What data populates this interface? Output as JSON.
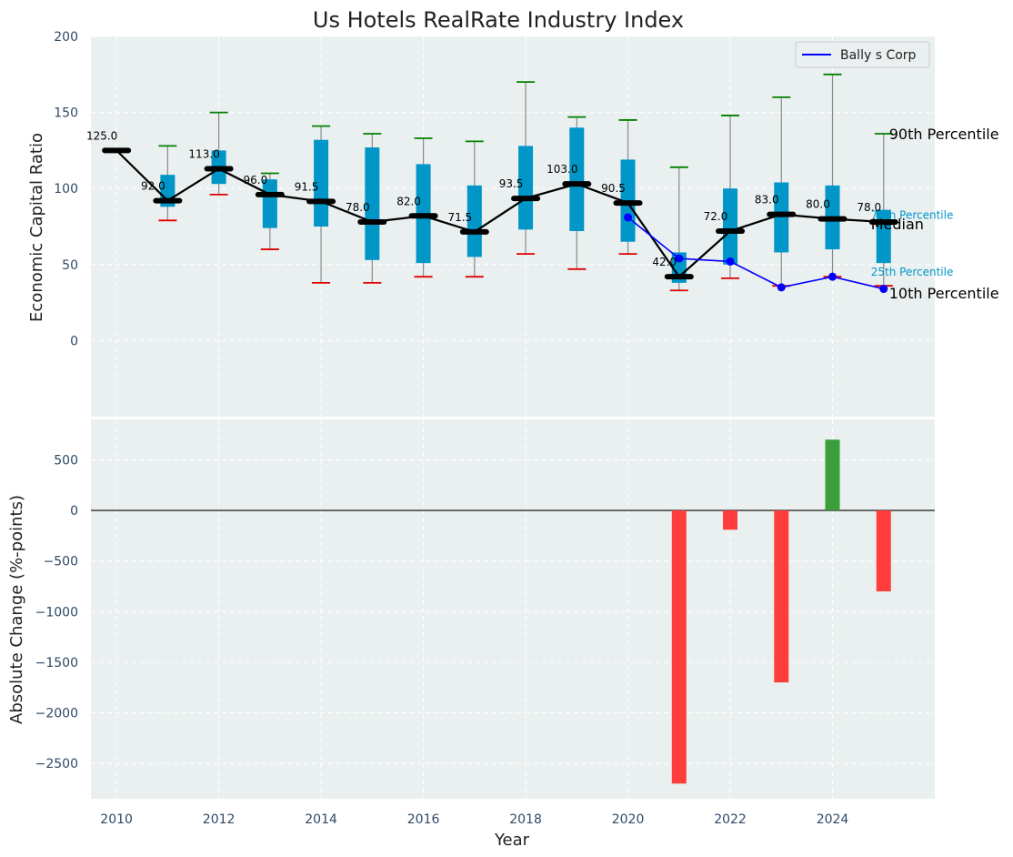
{
  "chart_data": [
    {
      "type": "box",
      "title": "Us Hotels RealRate Industry Index",
      "ylabel": "Economic Capital Ratio",
      "ylim": [
        -50,
        200
      ],
      "yticks": [
        0,
        50,
        100,
        150,
        200
      ],
      "grid": true,
      "legend": {
        "position": "top-right",
        "entries": [
          "Bally s Corp"
        ]
      },
      "colors": {
        "box": "#0096C7",
        "whisker_line": "#8A8A8A",
        "cap_high": "#008000",
        "cap_low": "#E00000",
        "median": "#000000",
        "company": "#0000FF",
        "background": "#EAEFF0"
      },
      "x": [
        2010,
        2011,
        2012,
        2013,
        2014,
        2015,
        2016,
        2017,
        2018,
        2019,
        2020,
        2021,
        2022,
        2023,
        2024,
        2025
      ],
      "p10": [
        125,
        79,
        96,
        60,
        38,
        38,
        42,
        42,
        57,
        47,
        57,
        33,
        41,
        36,
        42,
        36
      ],
      "p25": [
        125,
        88,
        103,
        74,
        75,
        53,
        51,
        55,
        73,
        72,
        65,
        38,
        50,
        58,
        60,
        51
      ],
      "median": [
        125,
        92,
        113,
        96,
        91.5,
        78,
        82,
        71.5,
        93.5,
        103,
        90.5,
        42,
        72,
        83,
        80,
        78
      ],
      "p75": [
        125,
        109,
        125,
        106,
        132,
        127,
        116,
        102,
        128,
        140,
        119,
        58,
        100,
        104,
        102,
        86
      ],
      "p90": [
        125,
        128,
        150,
        110,
        141,
        136,
        133,
        131,
        170,
        147,
        145,
        114,
        148,
        160,
        175,
        136
      ],
      "median_labels": [
        "125.0",
        "92.0",
        "113.0",
        "96.0",
        "91.5",
        "78.0",
        "82.0",
        "71.5",
        "93.5",
        "103.0",
        "90.5",
        "42.0",
        "72.0",
        "83.0",
        "80.0",
        "78.0"
      ],
      "series": [
        {
          "name": "Bally s Corp",
          "x": [
            2020,
            2021,
            2022,
            2023,
            2024,
            2025
          ],
          "values": [
            81,
            54,
            52,
            35,
            42,
            34
          ]
        }
      ],
      "annotations": {
        "p90": "90th Percentile",
        "median": "Median",
        "p10": "10th Percentile",
        "p75": "75th Percentile",
        "p25": "25th Percentile"
      }
    },
    {
      "type": "bar",
      "xlabel": "Year",
      "ylabel": "Absolute Change (%-points)",
      "ylim": [
        -2850,
        900
      ],
      "yticks": [
        -2500,
        -2000,
        -1500,
        -1000,
        -500,
        0,
        500
      ],
      "xticks": [
        2010,
        2012,
        2014,
        2016,
        2018,
        2020,
        2022,
        2024
      ],
      "grid": true,
      "colors": {
        "positive": "#3A9E3A",
        "negative": "#FF3D3D"
      },
      "x": [
        2021,
        2022,
        2023,
        2024,
        2025
      ],
      "values": [
        -2700,
        -190,
        -1700,
        700,
        -800
      ]
    }
  ]
}
